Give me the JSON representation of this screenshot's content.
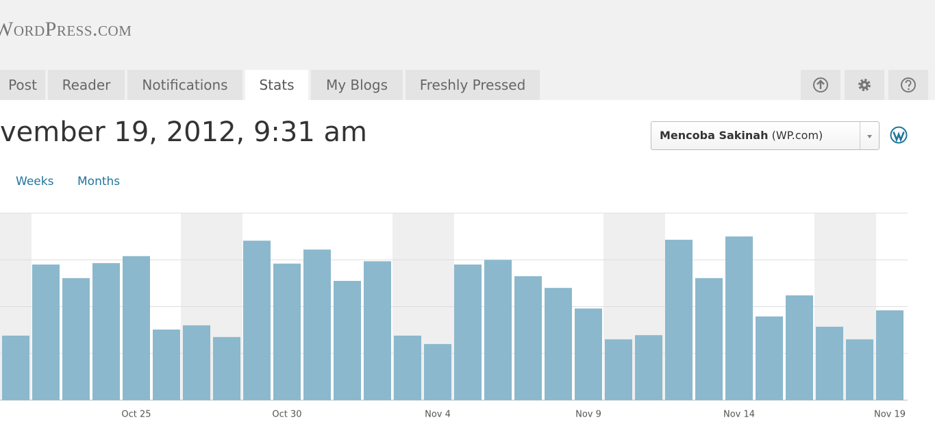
{
  "header": {
    "logo": "WordPress.com"
  },
  "tabs": [
    "Post",
    "Reader",
    "Notifications",
    "Stats",
    "My Blogs",
    "Freshly Pressed"
  ],
  "date": "vember 19, 2012, 9:31 am",
  "period_links": [
    "Weeks",
    "Months"
  ],
  "blog_select": {
    "name": "Mencoba Sakinah",
    "suffix": "(WP.com)"
  },
  "chart_data": {
    "type": "bar",
    "color": "#8bb8cd",
    "categories": [
      null,
      null,
      null,
      null,
      "Oct 25",
      null,
      null,
      null,
      null,
      "Oct 30",
      null,
      null,
      null,
      null,
      "Nov 4",
      null,
      null,
      null,
      null,
      "Nov 9",
      null,
      null,
      null,
      null,
      "Nov 14",
      null,
      null,
      null,
      null,
      "Nov 19"
    ],
    "values": [
      1.38,
      2.9,
      2.61,
      2.93,
      3.08,
      1.51,
      1.6,
      1.35,
      3.41,
      2.92,
      3.22,
      2.55,
      2.97,
      1.38,
      1.2,
      2.9,
      3.0,
      2.65,
      2.4,
      1.96,
      1.3,
      1.39,
      3.43,
      2.61,
      3.5,
      1.79,
      2.24,
      1.57,
      1.3,
      1.92
    ],
    "ylim": [
      0,
      4
    ],
    "yticks": [
      0,
      1,
      2,
      3,
      4
    ],
    "grid": true
  }
}
